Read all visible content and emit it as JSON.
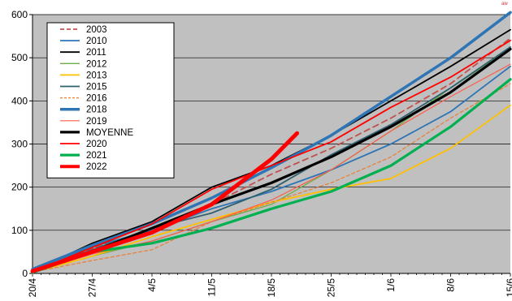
{
  "chart_data": {
    "type": "line",
    "title": "",
    "xlabel": "",
    "ylabel": "",
    "ylim": [
      0,
      600
    ],
    "yticks": [
      0,
      100,
      200,
      300,
      400,
      500,
      600
    ],
    "x_start": "20/4",
    "x_end": "15/6",
    "xticks": [
      {
        "label": "20/4",
        "day": 0
      },
      {
        "label": "27/4",
        "day": 7
      },
      {
        "label": "4/5",
        "day": 14
      },
      {
        "label": "11/5",
        "day": 21
      },
      {
        "label": "18/5",
        "day": 28
      },
      {
        "label": "25/5",
        "day": 35
      },
      {
        "label": "1/6",
        "day": 42
      },
      {
        "label": "8/6",
        "day": 49
      },
      {
        "label": "15/6",
        "day": 56
      }
    ],
    "grid": "horizontal",
    "legend_position": "top-left",
    "plot_background": "#c0c0c0",
    "corner_mark": "aw",
    "series": [
      {
        "name": "2003",
        "color": "#c0504d",
        "width": 1.8,
        "dash": "7,5",
        "points": [
          [
            0,
            5
          ],
          [
            7,
            58
          ],
          [
            14,
            100
          ],
          [
            21,
            160
          ],
          [
            28,
            230
          ],
          [
            35,
            290
          ],
          [
            42,
            360
          ],
          [
            49,
            440
          ],
          [
            56,
            545
          ]
        ]
      },
      {
        "name": "2010",
        "color": "#2e75b6",
        "width": 1.8,
        "dash": "",
        "points": [
          [
            0,
            3
          ],
          [
            7,
            62
          ],
          [
            14,
            100
          ],
          [
            21,
            150
          ],
          [
            28,
            190
          ],
          [
            35,
            240
          ],
          [
            42,
            300
          ],
          [
            49,
            375
          ],
          [
            56,
            480
          ]
        ]
      },
      {
        "name": "2011",
        "color": "#000000",
        "width": 1.8,
        "dash": "",
        "points": [
          [
            0,
            5
          ],
          [
            7,
            70
          ],
          [
            14,
            120
          ],
          [
            21,
            200
          ],
          [
            28,
            250
          ],
          [
            35,
            320
          ],
          [
            42,
            400
          ],
          [
            49,
            480
          ],
          [
            56,
            565
          ]
        ]
      },
      {
        "name": "2012",
        "color": "#70ad47",
        "width": 1.3,
        "dash": "",
        "points": [
          [
            0,
            3
          ],
          [
            7,
            40
          ],
          [
            14,
            75
          ],
          [
            21,
            120
          ],
          [
            28,
            160
          ],
          [
            35,
            240
          ],
          [
            42,
            330
          ],
          [
            49,
            430
          ],
          [
            56,
            520
          ]
        ]
      },
      {
        "name": "2013",
        "color": "#ffc000",
        "width": 1.8,
        "dash": "",
        "points": [
          [
            0,
            2
          ],
          [
            7,
            40
          ],
          [
            14,
            85
          ],
          [
            21,
            125
          ],
          [
            28,
            165
          ],
          [
            35,
            195
          ],
          [
            42,
            220
          ],
          [
            49,
            290
          ],
          [
            56,
            390
          ]
        ]
      },
      {
        "name": "2015",
        "color": "#2f5f6e",
        "width": 1.8,
        "dash": "",
        "points": [
          [
            0,
            5
          ],
          [
            7,
            55
          ],
          [
            14,
            105
          ],
          [
            21,
            140
          ],
          [
            28,
            195
          ],
          [
            35,
            275
          ],
          [
            42,
            345
          ],
          [
            49,
            430
          ],
          [
            56,
            525
          ]
        ]
      },
      {
        "name": "2016",
        "color": "#ed7d31",
        "width": 1.2,
        "dash": "4,3",
        "points": [
          [
            0,
            3
          ],
          [
            7,
            30
          ],
          [
            14,
            55
          ],
          [
            21,
            120
          ],
          [
            28,
            165
          ],
          [
            35,
            210
          ],
          [
            42,
            270
          ],
          [
            49,
            360
          ],
          [
            56,
            440
          ]
        ]
      },
      {
        "name": "2018",
        "color": "#2e75b6",
        "width": 3.5,
        "dash": "",
        "points": [
          [
            0,
            10
          ],
          [
            7,
            65
          ],
          [
            14,
            115
          ],
          [
            21,
            175
          ],
          [
            28,
            245
          ],
          [
            35,
            320
          ],
          [
            42,
            410
          ],
          [
            49,
            500
          ],
          [
            56,
            605
          ]
        ]
      },
      {
        "name": "2019",
        "color": "#ff5a4a",
        "width": 1.2,
        "dash": "",
        "points": [
          [
            0,
            3
          ],
          [
            7,
            45
          ],
          [
            14,
            75
          ],
          [
            21,
            120
          ],
          [
            28,
            170
          ],
          [
            35,
            240
          ],
          [
            42,
            330
          ],
          [
            49,
            410
          ],
          [
            56,
            485
          ]
        ]
      },
      {
        "name": "MOYENNE",
        "color": "#000000",
        "width": 3.2,
        "dash": "",
        "points": [
          [
            0,
            5
          ],
          [
            7,
            50
          ],
          [
            14,
            105
          ],
          [
            21,
            160
          ],
          [
            28,
            210
          ],
          [
            35,
            270
          ],
          [
            42,
            340
          ],
          [
            49,
            420
          ],
          [
            56,
            520
          ]
        ]
      },
      {
        "name": "2020",
        "color": "#ff0000",
        "width": 1.8,
        "dash": "",
        "points": [
          [
            0,
            3
          ],
          [
            7,
            60
          ],
          [
            14,
            115
          ],
          [
            21,
            195
          ],
          [
            28,
            250
          ],
          [
            35,
            305
          ],
          [
            42,
            385
          ],
          [
            49,
            455
          ],
          [
            56,
            540
          ]
        ]
      },
      {
        "name": "2021",
        "color": "#00b050",
        "width": 3.2,
        "dash": "",
        "points": [
          [
            0,
            2
          ],
          [
            7,
            50
          ],
          [
            14,
            70
          ],
          [
            21,
            105
          ],
          [
            28,
            150
          ],
          [
            35,
            190
          ],
          [
            42,
            250
          ],
          [
            49,
            340
          ],
          [
            56,
            450
          ]
        ]
      },
      {
        "name": "2022",
        "color": "#ff0000",
        "width": 5.0,
        "dash": "",
        "points": [
          [
            0,
            5
          ],
          [
            7,
            50
          ],
          [
            14,
            95
          ],
          [
            21,
            160
          ],
          [
            28,
            265
          ],
          [
            31,
            325
          ]
        ]
      }
    ]
  }
}
